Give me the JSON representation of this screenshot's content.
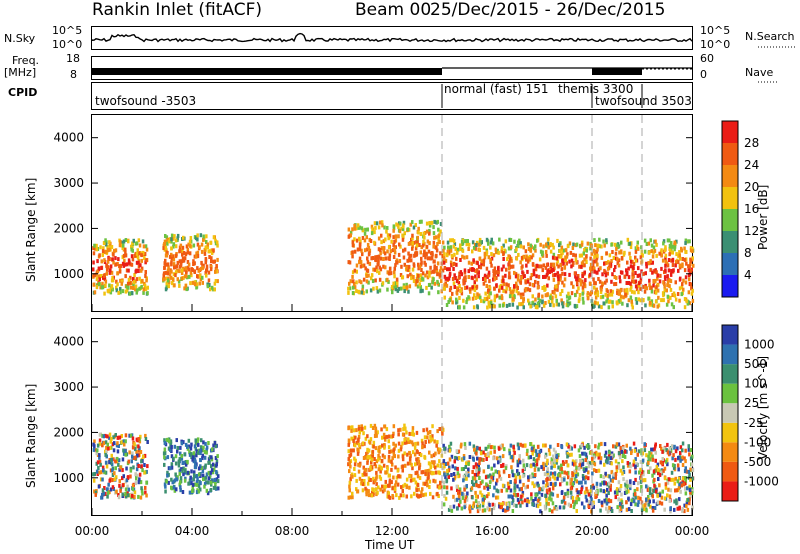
{
  "header": {
    "station": "Rankin Inlet (fitACF)",
    "beam": "Beam 00",
    "dates": "25/Dec/2015 - 26/Dec/2015"
  },
  "top_panels": {
    "nsky_label": "N.Sky",
    "nsearch_label": "N.Search",
    "nsky_ticks": [
      "10^5",
      "10^0"
    ],
    "nsearch_ticks": [
      "10^5",
      "10^0"
    ],
    "freq_label": "Freq.",
    "freq_unit": "[MHz]",
    "freq_ticks": [
      "18",
      "8"
    ],
    "nave_label": "Nave",
    "nave_ticks": [
      "60",
      "0"
    ],
    "cpid_label": "CPID",
    "modes": [
      {
        "label": "twofsound -3503",
        "start_hour": 0.1
      },
      {
        "label": "normal (fast) 151",
        "start_hour": 14.0
      },
      {
        "label": "themis 3300",
        "start_hour": 17.9
      },
      {
        "label": "twofsound 3503",
        "start_hour": 20.0
      }
    ]
  },
  "chart_data": [
    {
      "type": "heatmap",
      "title": "Power",
      "ylabel": "Slant Range [km]",
      "xlabel": "",
      "xlim": [
        0,
        24
      ],
      "ylim": [
        180,
        4500
      ],
      "yticks": [
        1000,
        2000,
        3000,
        4000
      ],
      "colorbar": {
        "label": "Power [dB]",
        "ticks": [
          4,
          8,
          12,
          16,
          20,
          24,
          28
        ],
        "range": [
          0,
          32
        ],
        "colors": [
          "#1b1bf0",
          "#2c6fb5",
          "#3b8f73",
          "#6cc242",
          "#f2c20f",
          "#f48a12",
          "#f05a12",
          "#ea1c16"
        ]
      },
      "scatter_regions": [
        {
          "hours": [
            0.0,
            2.2
          ],
          "range_km": [
            600,
            1800
          ],
          "value": "high"
        },
        {
          "hours": [
            2.8,
            5.0
          ],
          "range_km": [
            700,
            1900
          ],
          "value": "mid"
        },
        {
          "hours": [
            10.2,
            14.0
          ],
          "range_km": [
            600,
            2200
          ],
          "value": "mid"
        },
        {
          "hours": [
            14.0,
            24.0
          ],
          "range_km": [
            300,
            1800
          ],
          "value": "high"
        }
      ]
    },
    {
      "type": "heatmap",
      "title": "Velocity",
      "ylabel": "Slant Range [km]",
      "xlabel": "Time UT",
      "xlim": [
        0,
        24
      ],
      "ylim": [
        180,
        4500
      ],
      "xticks": [
        "00:00",
        "04:00",
        "08:00",
        "12:00",
        "16:00",
        "20:00",
        "00:00"
      ],
      "yticks": [
        1000,
        2000,
        3000,
        4000
      ],
      "colorbar": {
        "label": "Velocity [m s^-1]",
        "ticks": [
          "1000",
          "500",
          "100",
          "25",
          "-25",
          "-100",
          "-500",
          "-1000"
        ],
        "colors": [
          "#2a3ea8",
          "#2f72b0",
          "#3b8f6f",
          "#6bc23f",
          "#c8c8b4",
          "#f2c40f",
          "#f48a12",
          "#f05a12",
          "#ea1c16"
        ]
      },
      "scatter_regions": [
        {
          "hours": [
            0.0,
            2.2
          ],
          "range_km": [
            600,
            2000
          ],
          "value": "mixed"
        },
        {
          "hours": [
            2.8,
            5.0
          ],
          "range_km": [
            700,
            1900
          ],
          "value": "positive"
        },
        {
          "hours": [
            10.2,
            14.0
          ],
          "range_km": [
            600,
            2200
          ],
          "value": "negative"
        },
        {
          "hours": [
            14.0,
            24.0
          ],
          "range_km": [
            300,
            1800
          ],
          "value": "mixed"
        }
      ]
    }
  ]
}
